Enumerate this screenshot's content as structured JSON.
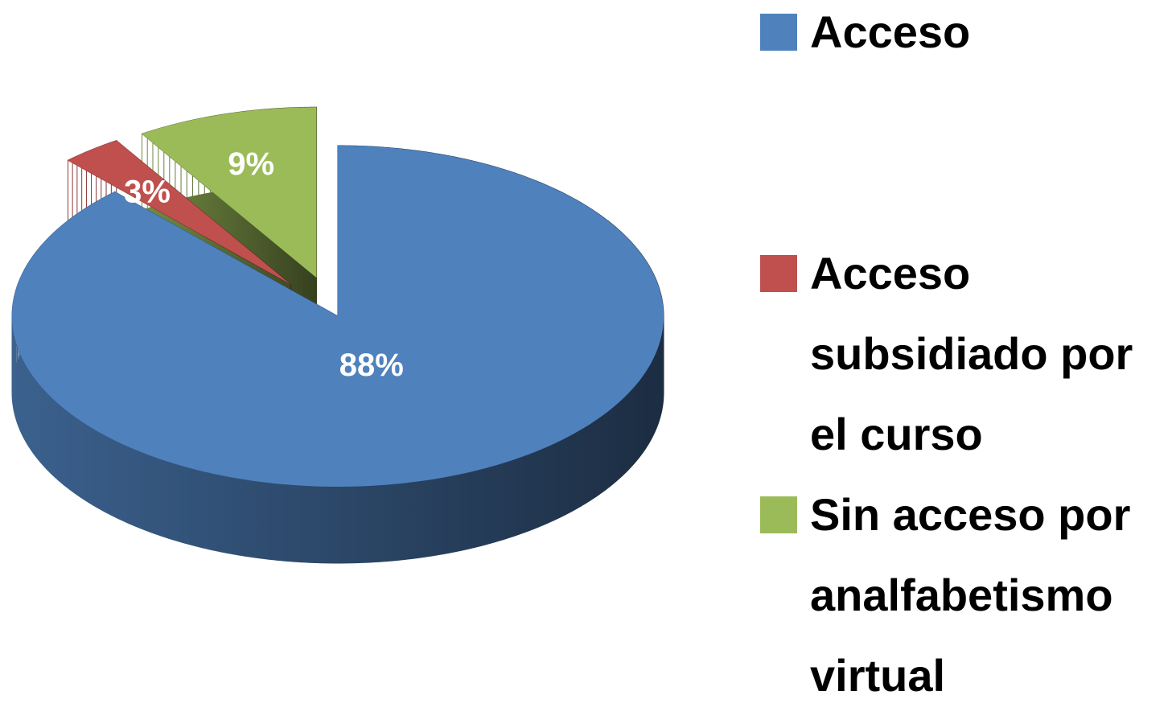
{
  "chart_data": {
    "type": "pie",
    "three_d": true,
    "categories": [
      "Acceso",
      "Acceso subsidiado por el curso",
      "Sin acceso por analfabetismo virtual"
    ],
    "values": [
      88,
      3,
      9
    ],
    "value_labels": [
      "88%",
      "3%",
      "9%"
    ],
    "colors": [
      "#4f81bd",
      "#c0504d",
      "#9bbb59"
    ],
    "exploded": [
      false,
      true,
      true
    ],
    "legend": "right"
  }
}
